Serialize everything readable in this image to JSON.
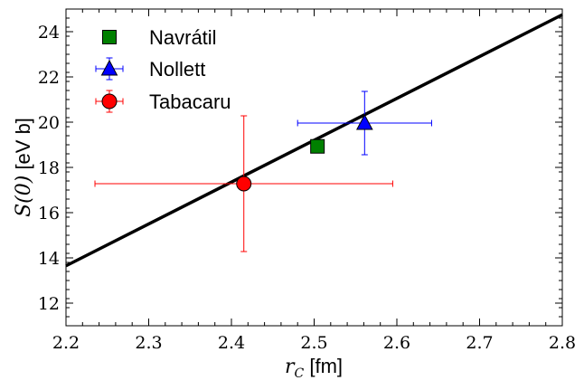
{
  "chart_data": {
    "type": "scatter",
    "xlabel_math": "r",
    "xlabel_sub": "C",
    "xlabel_unit": " [fm]",
    "ylabel_math": "S(0)",
    "ylabel_unit": " [eV b]",
    "xlim": [
      2.2,
      2.8
    ],
    "ylim": [
      11.0,
      25.0
    ],
    "xticks": [
      2.2,
      2.3,
      2.4,
      2.5,
      2.6,
      2.7,
      2.8
    ],
    "xtick_labels": [
      "2.2",
      "2.3",
      "2.4",
      "2.5",
      "2.6",
      "2.7",
      "2.8"
    ],
    "yticks": [
      12,
      14,
      16,
      18,
      20,
      22,
      24
    ],
    "ytick_labels": [
      "12",
      "14",
      "16",
      "18",
      "20",
      "22",
      "24"
    ],
    "grid": false,
    "legend_position": "top-left",
    "fit_line": {
      "x": [
        2.2,
        2.8
      ],
      "y": [
        13.65,
        24.75
      ],
      "color": "#000000"
    },
    "series": [
      {
        "name": "Navrátil",
        "marker": "square",
        "color": "#008000",
        "x": 2.504,
        "y": 18.93,
        "xerr": null,
        "yerr": null
      },
      {
        "name": "Nollett",
        "marker": "triangle",
        "color": "#0000ff",
        "x": 2.561,
        "y": 19.96,
        "xerr": 0.081,
        "yerr_up": 1.4,
        "yerr_down": 1.4
      },
      {
        "name": "Tabacaru",
        "marker": "circle",
        "color": "#ff0000",
        "x": 2.415,
        "y": 17.28,
        "xerr_left": 0.18,
        "xerr_right": 0.18,
        "yerr": 3.0
      }
    ]
  }
}
